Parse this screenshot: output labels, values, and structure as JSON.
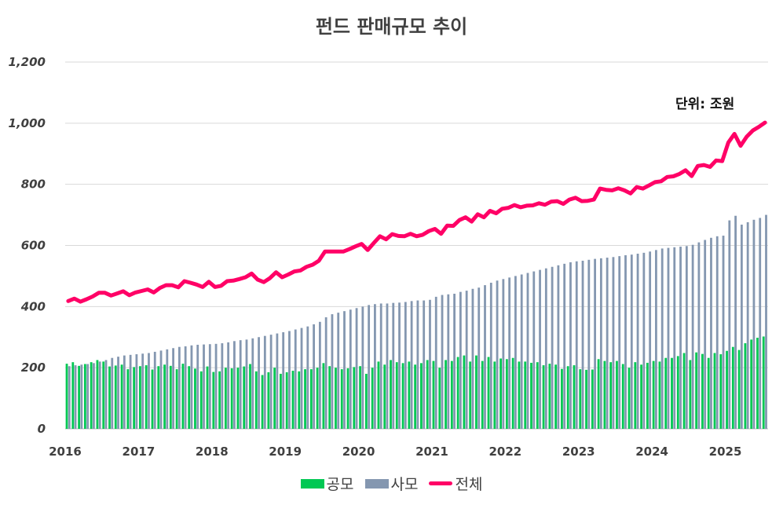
{
  "chart_data": {
    "type": "bar+line",
    "title": "펀드 판매규모  추이",
    "unit_note": "단위: 조원",
    "xlabel": "",
    "ylabel": "",
    "ylim": [
      0,
      1200
    ],
    "yticks": [
      "0",
      "200",
      "400",
      "600",
      "800",
      "1,000",
      "1,200"
    ],
    "ytick_values": [
      0,
      200,
      400,
      600,
      800,
      1000,
      1200
    ],
    "xtick_labels": [
      "2016",
      "2017",
      "2018",
      "2019",
      "2020",
      "2021",
      "2022",
      "2023",
      "2024",
      "2025"
    ],
    "start": "2016-01",
    "frequency": "monthly",
    "n_points": 115,
    "grid": true,
    "legend_position": "bottom",
    "colors": {
      "공모": "#00c853",
      "사모": "#8497b0",
      "전체": "#ff0066"
    },
    "series": [
      {
        "name": "공모",
        "type": "bar",
        "values": [
          213,
          218,
          206,
          212,
          218,
          225,
          220,
          204,
          207,
          210,
          195,
          202,
          205,
          208,
          194,
          205,
          210,
          206,
          195,
          213,
          205,
          197,
          188,
          204,
          186,
          188,
          200,
          198,
          200,
          204,
          212,
          188,
          176,
          185,
          200,
          180,
          185,
          190,
          188,
          195,
          195,
          200,
          215,
          205,
          200,
          195,
          198,
          202,
          205,
          180,
          200,
          220,
          210,
          225,
          218,
          215,
          220,
          210,
          215,
          225,
          222,
          200,
          225,
          222,
          235,
          240,
          220,
          240,
          222,
          235,
          220,
          230,
          228,
          232,
          220,
          220,
          216,
          218,
          208,
          213,
          210,
          196,
          205,
          208,
          195,
          193,
          194,
          228,
          222,
          218,
          222,
          212,
          200,
          218,
          210,
          216,
          222,
          220,
          232,
          232,
          238,
          248,
          225,
          250,
          245,
          232,
          248,
          244,
          255,
          268,
          258,
          280,
          292,
          298,
          302
        ]
      },
      {
        "name": "사모",
        "type": "bar",
        "values": [
          205,
          208,
          210,
          212,
          215,
          220,
          225,
          232,
          236,
          240,
          242,
          244,
          246,
          248,
          252,
          256,
          260,
          264,
          268,
          270,
          273,
          275,
          276,
          277,
          278,
          280,
          283,
          287,
          290,
          292,
          296,
          300,
          304,
          308,
          312,
          316,
          320,
          325,
          330,
          335,
          342,
          350,
          365,
          375,
          380,
          385,
          390,
          395,
          400,
          405,
          408,
          410,
          410,
          412,
          413,
          415,
          418,
          420,
          420,
          422,
          432,
          438,
          440,
          442,
          448,
          452,
          458,
          462,
          470,
          478,
          485,
          490,
          495,
          500,
          505,
          510,
          515,
          520,
          525,
          530,
          535,
          540,
          545,
          548,
          550,
          553,
          556,
          558,
          560,
          562,
          565,
          568,
          570,
          573,
          576,
          580,
          585,
          590,
          592,
          594,
          596,
          598,
          602,
          610,
          618,
          625,
          630,
          632,
          682,
          697,
          668,
          676,
          684,
          690,
          700
        ]
      },
      {
        "name": "전체",
        "type": "line",
        "values": [
          418,
          426,
          416,
          424,
          433,
          445,
          445,
          436,
          443,
          450,
          437,
          446,
          451,
          456,
          446,
          461,
          470,
          470,
          463,
          483,
          478,
          472,
          464,
          481,
          464,
          468,
          483,
          485,
          490,
          496,
          508,
          488,
          480,
          493,
          512,
          496,
          505,
          515,
          518,
          530,
          537,
          550,
          580,
          580,
          580,
          580,
          588,
          597,
          605,
          585,
          608,
          630,
          620,
          637,
          631,
          630,
          638,
          630,
          635,
          647,
          654,
          638,
          665,
          664,
          683,
          692,
          678,
          702,
          692,
          713,
          705,
          720,
          723,
          732,
          725,
          730,
          731,
          738,
          733,
          743,
          745,
          736,
          750,
          756,
          745,
          746,
          750,
          786,
          782,
          780,
          787,
          780,
          770,
          791,
          786,
          796,
          807,
          810,
          824,
          826,
          834,
          846,
          827,
          860,
          863,
          857,
          878,
          876,
          937,
          965,
          926,
          956,
          976,
          988,
          1002
        ]
      }
    ]
  }
}
